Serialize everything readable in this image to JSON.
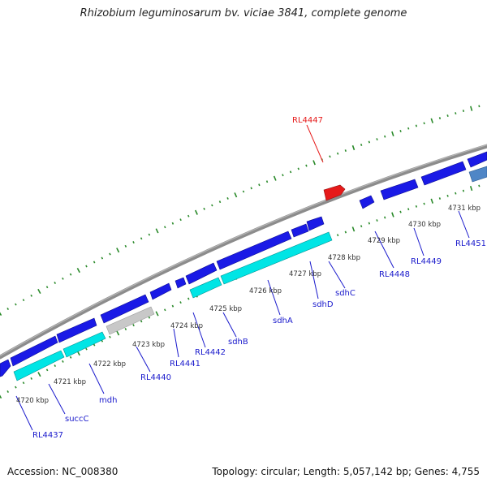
{
  "title": "Rhizobium leguminosarum bv. viciae 3841, complete genome",
  "footer": {
    "accession": "Accession: NC_008380",
    "summary": "Topology: circular; Length: 5,057,142 bp; Genes: 4,755"
  },
  "colors": {
    "backbone": "#8c8c8c",
    "tick": "#2a8a2a",
    "gene_forward": "#1a1ae6",
    "gene_reverse": "#00e5e5",
    "gene_pseudo": "#c8c8c8",
    "gene_highlight": "#e61a1a",
    "gene_other": "#4f86c6",
    "label_default": "#1a1acc",
    "label_highlight": "#e61a1a"
  },
  "kbp_ticks": [
    "4720 kbp",
    "4721 kbp",
    "4722 kbp",
    "4723 kbp",
    "4724 kbp",
    "4725 kbp",
    "4726 kbp",
    "4727 kbp",
    "4728 kbp",
    "4729 kbp",
    "4730 kbp",
    "4731 kbp"
  ],
  "gene_labels": [
    "RL4437",
    "succC",
    "mdh",
    "RL4440",
    "RL4441",
    "RL4442",
    "sdhB",
    "sdhA",
    "sdhD",
    "sdhC",
    "RL4447",
    "RL4448",
    "RL4449",
    "RL4451"
  ]
}
